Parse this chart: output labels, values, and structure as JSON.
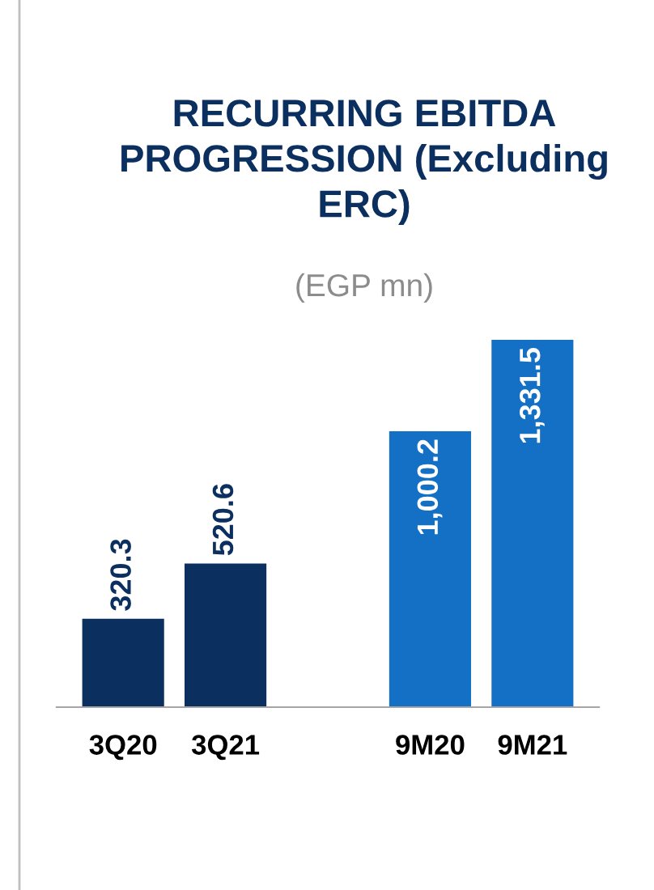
{
  "chart_data": {
    "type": "bar",
    "title": "RECURRING EBITDA PROGRESSION (Excluding ERC)",
    "subtitle": "(EGP mn)",
    "categories": [
      "3Q20",
      "3Q21",
      null,
      "9M20",
      "9M21"
    ],
    "values": [
      320.3,
      520.6,
      null,
      1000.2,
      1331.5
    ],
    "colors": [
      "#0b3060",
      "#0b3060",
      null,
      "#1470c4",
      "#1470c4"
    ],
    "value_labels": [
      "320.3",
      "520.6",
      null,
      "1,000.2",
      "1,331.5"
    ],
    "grid": false,
    "legend": false
  }
}
